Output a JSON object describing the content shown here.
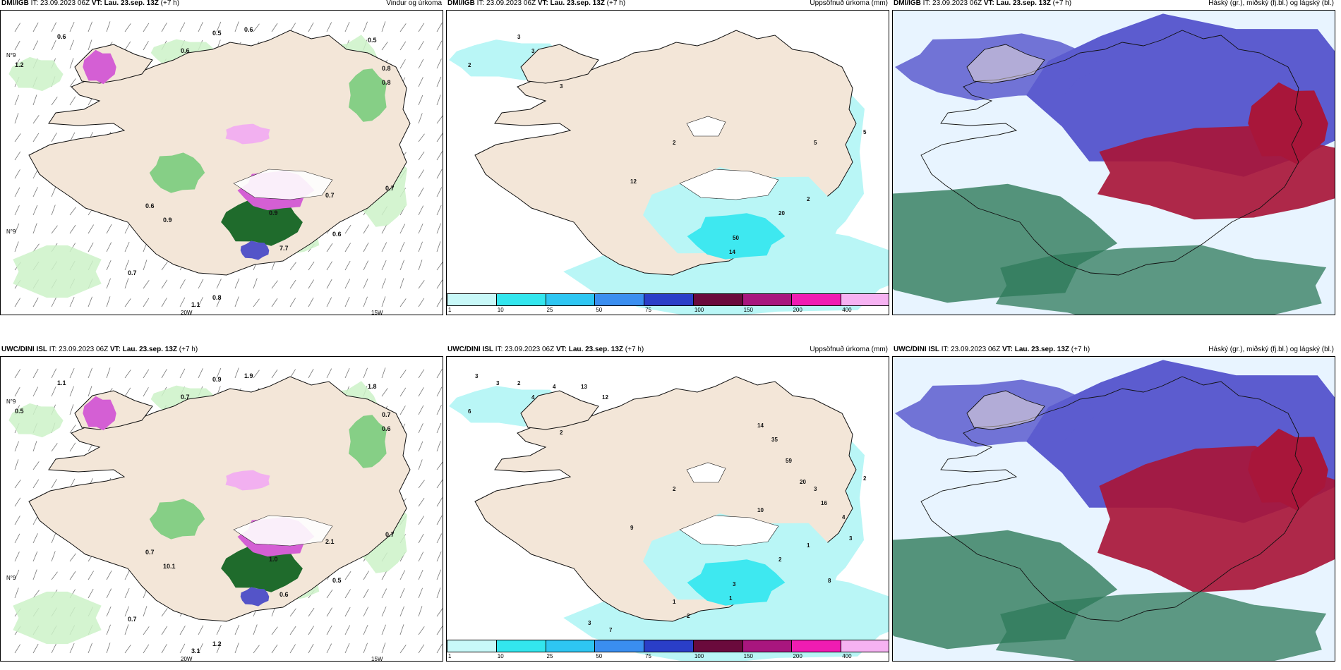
{
  "colors": {
    "land": "#f3e6d8",
    "sea": "#ffffff",
    "coast": "#111111",
    "green_light": "#cdf2c8",
    "green_mid": "#86cf86",
    "green_dark": "#1f6b2c",
    "magenta": "#d45fd4",
    "pink": "#f2b0f0",
    "navy": "#5454c8",
    "cyan_light": "#b9f6f6",
    "cyan": "#3ee8f0",
    "cloud_high": "#a8163a",
    "cloud_mid": "#5c5ccf",
    "cloud_low": "#2e7a5a"
  },
  "panels": [
    {
      "model": "DMI/IGB",
      "header_rest": "IT: 23.09.2023 06Z",
      "vt_bold": "VT: Lau. 23.sep. 13Z",
      "lead": "(+7 h)",
      "title": "Vindur og úrkoma",
      "type": "wind",
      "axis_labels": [
        "20W",
        "15W",
        "N°9",
        "N°9"
      ],
      "values": [
        "0.6",
        "0.5",
        "0.6",
        "0.6",
        "0.5",
        "0.8",
        "0.8",
        "1.2",
        "0.9",
        "0.6",
        "0.7",
        "0.8",
        "0.7",
        "7.7",
        "1.1",
        "0.7",
        "0.9",
        "0.6"
      ]
    },
    {
      "model": "DMI/IGB",
      "header_rest": "IT: 23.09.2023 06Z",
      "vt_bold": "VT: Lau. 23.sep. 13Z",
      "lead": "(+7 h)",
      "title": "Uppsöfnuð úrkoma (mm)",
      "type": "accum",
      "values": [
        "3",
        "2",
        "3",
        "3",
        "2",
        "5",
        "12",
        "2",
        "50",
        "14",
        "20",
        "5"
      ],
      "colorbar": {
        "labels": [
          "1",
          "10",
          "25",
          "50",
          "75",
          "100",
          "150",
          "200",
          "400"
        ],
        "colors": [
          "#c8f8f8",
          "#33e6ee",
          "#2ec6f2",
          "#3a8ef0",
          "#2a3ec8",
          "#6a0a3c",
          "#a8167e",
          "#f01cb2",
          "#f6b2f2"
        ]
      }
    },
    {
      "model": "DMI/IGB",
      "header_rest": "IT: 23.09.2023 06Z",
      "vt_bold": "VT: Lau. 23.sep. 13Z",
      "lead": "(+7 h)",
      "title": "Háský (gr.), miðský (fj.bl.) og lágský (bl.)",
      "type": "cloud"
    },
    {
      "model": "UWC/DINI ISL",
      "header_rest": "IT: 23.09.2023 06Z",
      "vt_bold": "VT: Lau. 23.sep. 13Z",
      "lead": "(+7 h)",
      "title": "",
      "type": "wind",
      "axis_labels": [
        "20W",
        "15W",
        "N°9",
        "N°9"
      ],
      "values": [
        "1.1",
        "0.9",
        "1.9",
        "0.7",
        "1.8",
        "0.7",
        "0.6",
        "0.5",
        "10.1",
        "0.7",
        "0.7",
        "1.2",
        "0.7",
        "0.6",
        "3.1",
        "2.1",
        "1.0",
        "0.5"
      ]
    },
    {
      "model": "UWC/DINI ISL",
      "header_rest": "IT: 23.09.2023 06Z",
      "vt_bold": "VT: Lau. 23.sep. 13Z",
      "lead": "(+7 h)",
      "title": "Uppsöfnuð úrkoma (mm)",
      "type": "accum",
      "values": [
        "2",
        "6",
        "4",
        "2",
        "2",
        "3",
        "9",
        "1",
        "3",
        "1",
        "2",
        "2",
        "3",
        "3",
        "4",
        "13",
        "12",
        "14",
        "35",
        "59",
        "20",
        "16",
        "10",
        "4",
        "3",
        "1",
        "2",
        "3",
        "7",
        "8"
      ],
      "colorbar": {
        "labels": [
          "1",
          "10",
          "25",
          "50",
          "75",
          "100",
          "150",
          "200",
          "400"
        ],
        "colors": [
          "#c8f8f8",
          "#33e6ee",
          "#2ec6f2",
          "#3a8ef0",
          "#2a3ec8",
          "#6a0a3c",
          "#a8167e",
          "#f01cb2",
          "#f6b2f2"
        ]
      }
    },
    {
      "model": "UWC/DINI ISL",
      "header_rest": "IT: 23.09.2023 06Z",
      "vt_bold": "VT: Lau. 23.sep. 13Z",
      "lead": "(+7 h)",
      "title": "Háský (gr.), miðský (fj.bl.) og lágský (bl.)",
      "type": "cloud"
    }
  ]
}
